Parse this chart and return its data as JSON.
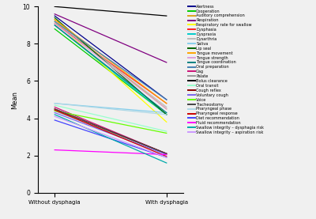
{
  "series": [
    {
      "label": "Alertness",
      "color": "#00008B",
      "without": 9.5,
      "with": 5.0
    },
    {
      "label": "Cooperation",
      "color": "#00CC00",
      "without": 8.8,
      "with": 4.2
    },
    {
      "label": "Auditory comprehension",
      "color": "#DAA520",
      "without": 9.3,
      "with": 4.5
    },
    {
      "label": "Respiration",
      "color": "#800080",
      "without": 9.6,
      "with": 7.0
    },
    {
      "label": "Respiratory rate for swallow",
      "color": "#FFFF00",
      "without": 9.2,
      "with": 3.8
    },
    {
      "label": "Dysphasia",
      "color": "#FF2222",
      "without": 9.1,
      "with": 4.8
    },
    {
      "label": "Dyspraxia",
      "color": "#00CCCC",
      "without": 9.0,
      "with": 4.2
    },
    {
      "label": "Dysarthria",
      "color": "#BBBBBB",
      "without": 9.2,
      "with": 4.6
    },
    {
      "label": "Saliva",
      "color": "#87CEEB",
      "without": 4.8,
      "with": 4.3
    },
    {
      "label": "Lip seal",
      "color": "#006400",
      "without": 9.4,
      "with": 4.2
    },
    {
      "label": "Tongue movement",
      "color": "#FFA500",
      "without": 9.3,
      "with": 4.8
    },
    {
      "label": "Tongue strength",
      "color": "#DDA0DD",
      "without": 9.1,
      "with": 4.5
    },
    {
      "label": "Tongue coordination",
      "color": "#008080",
      "without": 9.0,
      "with": 4.3
    },
    {
      "label": "Oral preparation",
      "color": "#4682B4",
      "without": 9.2,
      "with": 5.0
    },
    {
      "label": "Gag",
      "color": "#CC1177",
      "without": 4.6,
      "with": 2.1
    },
    {
      "label": "Palate",
      "color": "#999999",
      "without": 4.4,
      "with": 2.1
    },
    {
      "label": "Bolus clearance",
      "color": "#000000",
      "without": 10.0,
      "with": 9.5
    },
    {
      "label": "Oral transit",
      "color": "#99FFCC",
      "without": 4.7,
      "with": 3.3
    },
    {
      "label": "Cough reflex",
      "color": "#8B0000",
      "without": 4.5,
      "with": 2.1
    },
    {
      "label": "Voluntary cough",
      "color": "#7B68EE",
      "without": 4.3,
      "with": 2.05
    },
    {
      "label": "Voice",
      "color": "#66FF00",
      "without": 4.4,
      "with": 3.2
    },
    {
      "label": "Tracheostomy",
      "color": "#444444",
      "without": 4.5,
      "with": 2.1
    },
    {
      "label": "Pharyngeal phase",
      "color": "#ADD8E6",
      "without": 4.8,
      "with": 4.2
    },
    {
      "label": "Pharyngeal response",
      "color": "#CC0000",
      "without": 4.45,
      "with": 1.95
    },
    {
      "label": "Diet recommendation",
      "color": "#4444FF",
      "without": 3.9,
      "with": 1.9
    },
    {
      "label": "Fluid recommendation",
      "color": "#FF00FF",
      "without": 2.3,
      "with": 2.05
    },
    {
      "label": "Swallow integrity – dysphagia risk",
      "color": "#00AAAA",
      "without": 4.2,
      "with": 1.6
    },
    {
      "label": "Swallow integrity – aspiration risk",
      "color": "#CC99FF",
      "without": 4.1,
      "with": 1.9
    }
  ],
  "x_labels": [
    "Without dysphagia",
    "With dysphagia"
  ],
  "ylabel": "Mean",
  "ylim": [
    0,
    10
  ],
  "yticks": [
    0,
    2,
    4,
    6,
    8,
    10
  ],
  "plot_bg_color": "#F0F0F0",
  "fig_bg_color": "#F0F0F0"
}
